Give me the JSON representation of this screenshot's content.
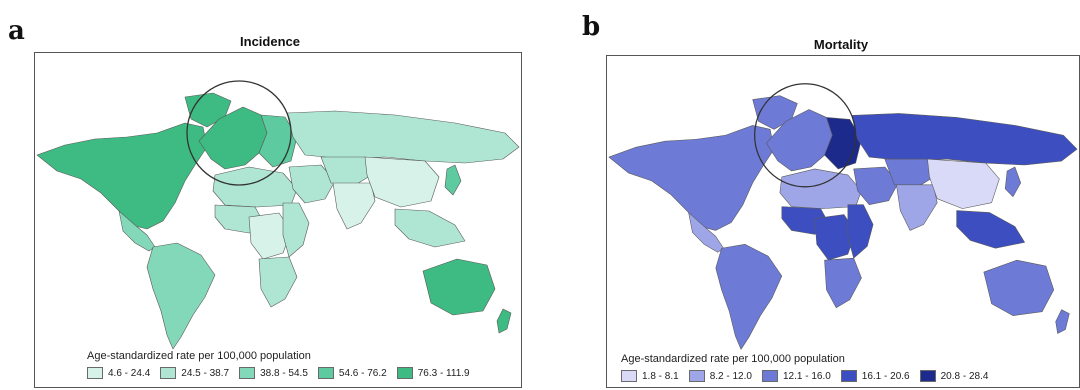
{
  "panels": [
    {
      "letter": "a",
      "title": "Incidence",
      "legend_title": "Age-standardized rate per 100,000 population",
      "palette": [
        "#d6f2e9",
        "#aee6d3",
        "#84d8ba",
        "#5dcb9f",
        "#3ebb82"
      ],
      "legend": [
        "4.6 - 24.4",
        "24.5 - 38.7",
        "38.8 - 54.5",
        "54.6 - 76.2",
        "76.3 - 111.9"
      ],
      "region_classes": {
        "north_america": 4,
        "greenland": 4,
        "central_america": 2,
        "south_america": 2,
        "western_europe": 4,
        "eastern_europe": 3,
        "russia": 1,
        "north_africa": 1,
        "west_africa": 1,
        "central_africa": 0,
        "east_africa": 1,
        "southern_africa": 1,
        "middle_east": 1,
        "central_asia": 1,
        "south_asia": 0,
        "china": 0,
        "southeast_asia": 1,
        "japan": 3,
        "oceania": 4,
        "new_zealand": 4
      }
    },
    {
      "letter": "b",
      "title": "Mortality",
      "legend_title": "Age-standardized rate per 100,000 population",
      "palette": [
        "#d9daf8",
        "#9ea6e8",
        "#6d7ad6",
        "#3d4fc0",
        "#1c2a8c"
      ],
      "legend": [
        "1.8 - 8.1",
        "8.2 - 12.0",
        "12.1 - 16.0",
        "16.1 - 20.6",
        "20.8 - 28.4"
      ],
      "region_classes": {
        "north_america": 2,
        "greenland": 2,
        "central_america": 1,
        "south_america": 2,
        "western_europe": 2,
        "eastern_europe": 4,
        "russia": 3,
        "north_africa": 1,
        "west_africa": 3,
        "central_africa": 3,
        "east_africa": 3,
        "southern_africa": 2,
        "middle_east": 2,
        "central_asia": 2,
        "south_asia": 1,
        "china": 0,
        "southeast_asia": 3,
        "japan": 2,
        "oceania": 2,
        "new_zealand": 2
      }
    }
  ]
}
